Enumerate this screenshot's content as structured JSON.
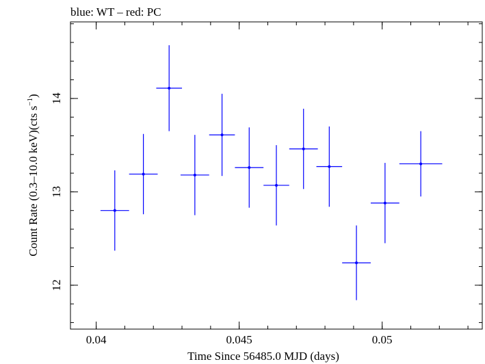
{
  "chart_data": {
    "type": "scatter",
    "title": "blue: WT – red: PC",
    "xlabel": "Time Since 56485.0 MJD (days)",
    "ylabel_main": "Count Rate (0.3–10.0 keV)(cts s",
    "ylabel_sup": "−1",
    "ylabel_end": ")",
    "xlim": [
      0.0391,
      0.0535
    ],
    "ylim": [
      11.53,
      14.82
    ],
    "xticks_major": [
      0.04,
      0.045,
      0.05
    ],
    "xtick_labels": [
      "0.04",
      "0.045",
      "0.05"
    ],
    "yticks_major": [
      12,
      13,
      14
    ],
    "ytick_labels": [
      "12",
      "13",
      "14"
    ],
    "x_minor_step": 0.001,
    "y_minor_step": 0.2,
    "grid": false,
    "colors": {
      "WT": "#0000ff",
      "axes": "#000000"
    },
    "series": [
      {
        "name": "WT",
        "x": [
          0.04065,
          0.04165,
          0.04255,
          0.04345,
          0.0444,
          0.04535,
          0.0463,
          0.04725,
          0.04815,
          0.0491,
          0.0501,
          0.05135
        ],
        "xerr": [
          0.0005,
          0.0005,
          0.00045,
          0.0005,
          0.00045,
          0.0005,
          0.00045,
          0.0005,
          0.00045,
          0.0005,
          0.0005,
          0.00075
        ],
        "y": [
          12.8,
          13.19,
          14.11,
          13.18,
          13.61,
          13.26,
          13.07,
          13.46,
          13.27,
          12.24,
          12.88,
          13.3
        ],
        "yerr": [
          0.43,
          0.43,
          0.46,
          0.43,
          0.44,
          0.43,
          0.43,
          0.43,
          0.43,
          0.4,
          0.43,
          0.35
        ]
      }
    ]
  }
}
